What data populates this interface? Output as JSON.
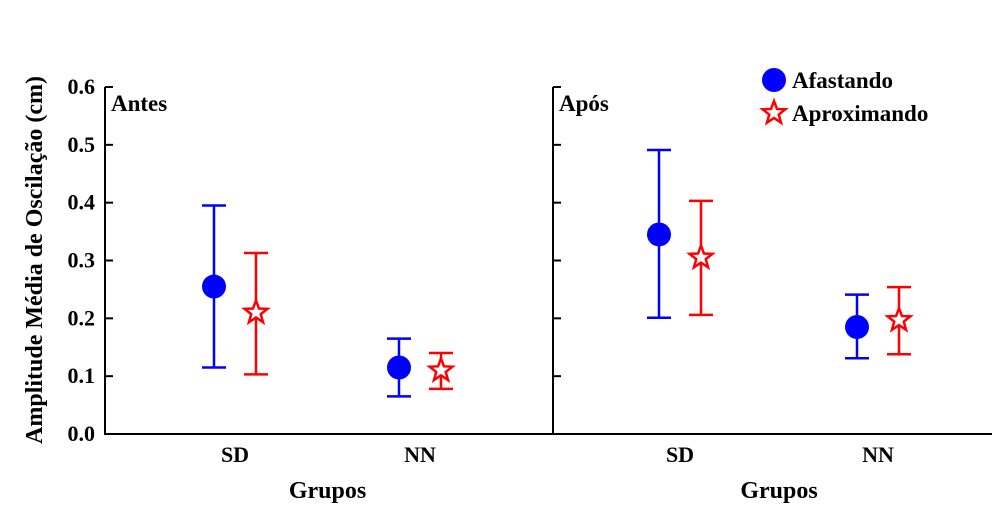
{
  "chart_data": {
    "type": "errorbar",
    "ylabel": "Amplitude Média de Oscilação (cm)",
    "ylim": [
      0.0,
      0.6
    ],
    "yticks": [
      "0.0",
      "0.1",
      "0.2",
      "0.3",
      "0.4",
      "0.5",
      "0.6"
    ],
    "grid": false,
    "legend_placement": "top-right",
    "series_info": [
      {
        "name": "Afastando",
        "color": "#0000ff",
        "marker": "circle"
      },
      {
        "name": "Aproximando",
        "color": "#ff0000",
        "marker": "star"
      }
    ],
    "panels": [
      {
        "label": "Antes",
        "xlabel": "Grupos",
        "categories": [
          "SD",
          "NN"
        ],
        "series": [
          {
            "name": "Afastando",
            "values": [
              0.255,
              0.115
            ],
            "lower": [
              0.115,
              0.065
            ],
            "upper": [
              0.395,
              0.165
            ]
          },
          {
            "name": "Aproximando",
            "values": [
              0.21,
              0.11
            ],
            "lower": [
              0.103,
              0.078
            ],
            "upper": [
              0.313,
              0.14
            ]
          }
        ]
      },
      {
        "label": "Após",
        "xlabel": "Grupos",
        "categories": [
          "SD",
          "NN"
        ],
        "series": [
          {
            "name": "Afastando",
            "values": [
              0.345,
              0.185
            ],
            "lower": [
              0.201,
              0.131
            ],
            "upper": [
              0.491,
              0.241
            ]
          },
          {
            "name": "Aproximando",
            "values": [
              0.305,
              0.197
            ],
            "lower": [
              0.206,
              0.138
            ],
            "upper": [
              0.403,
              0.254
            ]
          }
        ]
      }
    ]
  }
}
